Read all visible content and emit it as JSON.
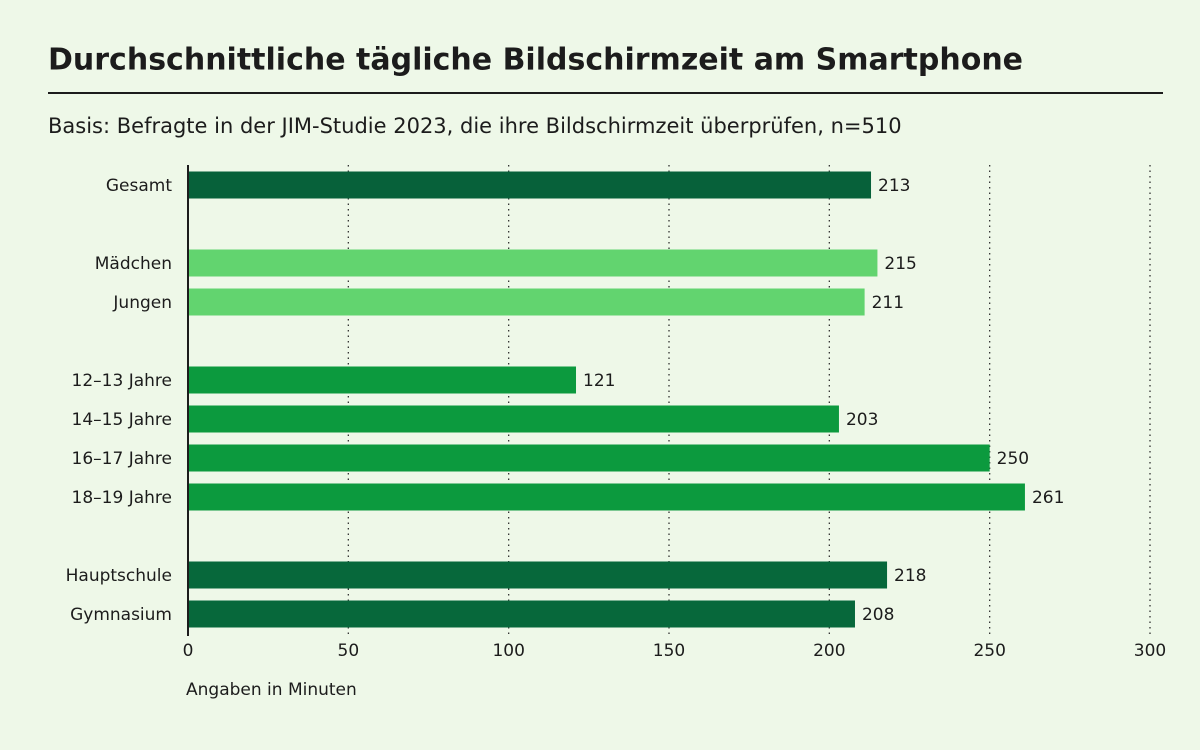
{
  "chart_data": {
    "type": "bar",
    "orientation": "horizontal",
    "title": "Durchschnittliche tägliche Bildschirmzeit am Smartphone",
    "subtitle": "Basis: Befragte in der JIM-Studie 2023, die ihre Bildschirmzeit überprüfen, n=510",
    "x_label": "Angaben in Minuten",
    "groups": [
      {
        "categories": [
          "Gesamt"
        ],
        "values": [
          213
        ],
        "color": "#07613a"
      },
      {
        "categories": [
          "Mädchen",
          "Jungen"
        ],
        "values": [
          215,
          211
        ],
        "color": "#62d46f"
      },
      {
        "categories": [
          "12–13 Jahre",
          "14–15 Jahre",
          "16–17 Jahre",
          "18–19 Jahre"
        ],
        "values": [
          121,
          203,
          250,
          261
        ],
        "color": "#0c9a3e"
      },
      {
        "categories": [
          "Hauptschule",
          "Gymnasium"
        ],
        "values": [
          218,
          208
        ],
        "color": "#07683b"
      }
    ],
    "xlim": [
      0,
      300
    ],
    "xticks": [
      0,
      50,
      100,
      150,
      200,
      250,
      300
    ],
    "grid": true
  }
}
